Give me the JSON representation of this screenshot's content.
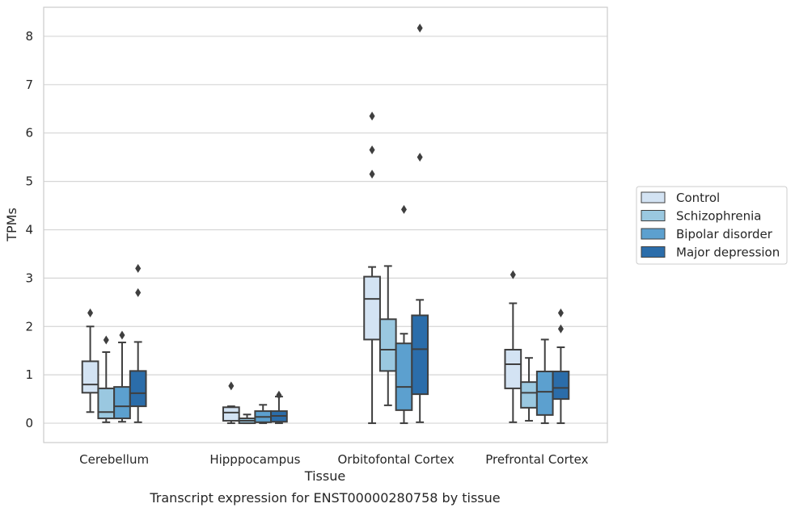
{
  "chart_data": {
    "type": "box",
    "title": "",
    "caption": "Transcript expression for ENST00000280758 by tissue",
    "xlabel": "Tissue",
    "ylabel": "TPMs",
    "ylim": [
      -0.4,
      8.6
    ],
    "yticks": [
      0,
      1,
      2,
      3,
      4,
      5,
      6,
      7,
      8
    ],
    "grid": "horizontal",
    "legend_position": "right",
    "categories": [
      "Cerebellum",
      "Hipppocampus",
      "Orbitofontal Cortex",
      "Prefrontal Cortex"
    ],
    "series": [
      {
        "name": "Control",
        "color": "#d3e3f3",
        "boxes": [
          {
            "whislo": 0.23,
            "q1": 0.63,
            "med": 0.8,
            "q3": 1.28,
            "whishi": 2.0,
            "fliers": [
              2.28
            ]
          },
          {
            "whislo": 0.0,
            "q1": 0.05,
            "med": 0.22,
            "q3": 0.33,
            "whishi": 0.35,
            "fliers": [
              0.77
            ]
          },
          {
            "whislo": 0.0,
            "q1": 1.73,
            "med": 2.57,
            "q3": 3.03,
            "whishi": 3.23,
            "fliers": [
              5.15,
              5.65,
              6.35
            ]
          },
          {
            "whislo": 0.02,
            "q1": 0.72,
            "med": 1.22,
            "q3": 1.52,
            "whishi": 2.48,
            "fliers": [
              3.07
            ]
          }
        ]
      },
      {
        "name": "Schizophrenia",
        "color": "#9ac8e0",
        "boxes": [
          {
            "whislo": 0.02,
            "q1": 0.1,
            "med": 0.23,
            "q3": 0.72,
            "whishi": 1.47,
            "fliers": [
              1.72
            ]
          },
          {
            "whislo": 0.0,
            "q1": 0.0,
            "med": 0.05,
            "q3": 0.1,
            "whishi": 0.18,
            "fliers": []
          },
          {
            "whislo": 0.37,
            "q1": 1.08,
            "med": 1.52,
            "q3": 2.15,
            "whishi": 3.25,
            "fliers": []
          },
          {
            "whislo": 0.05,
            "q1": 0.32,
            "med": 0.63,
            "q3": 0.85,
            "whishi": 1.35,
            "fliers": []
          }
        ]
      },
      {
        "name": "Bipolar disorder",
        "color": "#5ca0cf",
        "boxes": [
          {
            "whislo": 0.03,
            "q1": 0.1,
            "med": 0.35,
            "q3": 0.75,
            "whishi": 1.67,
            "fliers": [
              1.82
            ]
          },
          {
            "whislo": 0.0,
            "q1": 0.02,
            "med": 0.13,
            "q3": 0.25,
            "whishi": 0.38,
            "fliers": []
          },
          {
            "whislo": 0.0,
            "q1": 0.27,
            "med": 0.75,
            "q3": 1.65,
            "whishi": 1.85,
            "fliers": [
              4.42
            ]
          },
          {
            "whislo": 0.0,
            "q1": 0.17,
            "med": 0.65,
            "q3": 1.07,
            "whishi": 1.73,
            "fliers": []
          }
        ]
      },
      {
        "name": "Major depression",
        "color": "#2b6daa",
        "boxes": [
          {
            "whislo": 0.02,
            "q1": 0.35,
            "med": 0.62,
            "q3": 1.08,
            "whishi": 1.68,
            "fliers": [
              2.7,
              3.2
            ]
          },
          {
            "whislo": 0.0,
            "q1": 0.03,
            "med": 0.15,
            "q3": 0.25,
            "whishi": 0.55,
            "fliers": [
              0.58
            ]
          },
          {
            "whislo": 0.02,
            "q1": 0.6,
            "med": 1.53,
            "q3": 2.23,
            "whishi": 2.55,
            "fliers": [
              5.5,
              8.17
            ]
          },
          {
            "whislo": 0.0,
            "q1": 0.5,
            "med": 0.73,
            "q3": 1.07,
            "whishi": 1.57,
            "fliers": [
              1.95,
              2.28
            ]
          }
        ]
      }
    ]
  }
}
